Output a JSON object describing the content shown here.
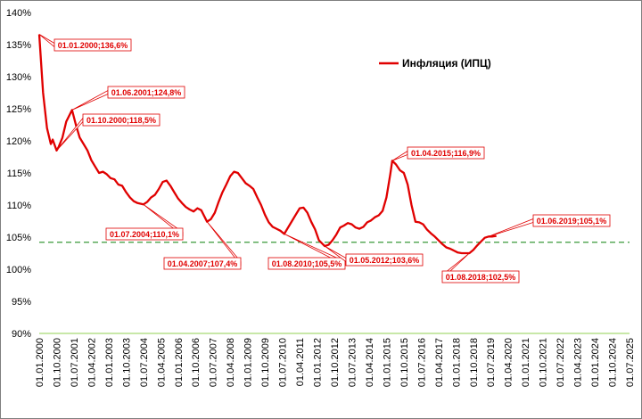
{
  "chart_data": {
    "type": "line",
    "title": "",
    "xlabel": "",
    "ylabel": "",
    "ylim": [
      90,
      140
    ],
    "yticks": [
      "90%",
      "95%",
      "100%",
      "105%",
      "110%",
      "115%",
      "120%",
      "125%",
      "130%",
      "135%",
      "140%"
    ],
    "xticks": [
      "01.01.2000",
      "01.10.2000",
      "01.07.2001",
      "01.04.2002",
      "01.01.2003",
      "01.10.2003",
      "01.07.2004",
      "01.04.2005",
      "01.01.2006",
      "01.10.2006",
      "01.07.2007",
      "01.04.2008",
      "01.01.2009",
      "01.10.2009",
      "01.07.2010",
      "01.04.2011",
      "01.01.2012",
      "01.10.2012",
      "01.07.2013",
      "01.04.2014",
      "01.01.2015",
      "01.10.2015",
      "01.07.2016",
      "01.04.2017",
      "01.01.2018",
      "01.10.2018",
      "01.07.2019",
      "01.04.2020",
      "01.01.2021",
      "01.10.2021",
      "01.07.2022",
      "01.04.2023",
      "01.01.2024",
      "01.10.2024",
      "01.07.2025"
    ],
    "grid": false,
    "legend_position": "top-right",
    "colors": {
      "series": "#e00000",
      "target": "#3a9a3a",
      "baseline": "#92d050"
    },
    "series": [
      {
        "name": "Инфляция (ИПЦ)",
        "x": [
          "2000-01",
          "2000-03",
          "2000-05",
          "2000-07",
          "2000-08",
          "2000-10",
          "2000-11",
          "2001-01",
          "2001-03",
          "2001-06",
          "2001-08",
          "2001-10",
          "2001-12",
          "2002-02",
          "2002-04",
          "2002-06",
          "2002-08",
          "2002-10",
          "2002-12",
          "2003-02",
          "2003-04",
          "2003-06",
          "2003-08",
          "2003-10",
          "2003-12",
          "2004-02",
          "2004-04",
          "2004-07",
          "2004-09",
          "2004-11",
          "2005-01",
          "2005-03",
          "2005-05",
          "2005-07",
          "2005-09",
          "2005-11",
          "2006-01",
          "2006-03",
          "2006-05",
          "2006-07",
          "2006-09",
          "2006-11",
          "2007-01",
          "2007-04",
          "2007-06",
          "2007-08",
          "2007-10",
          "2007-12",
          "2008-02",
          "2008-04",
          "2008-06",
          "2008-08",
          "2008-10",
          "2008-12",
          "2009-02",
          "2009-04",
          "2009-06",
          "2009-08",
          "2009-10",
          "2009-12",
          "2010-02",
          "2010-04",
          "2010-06",
          "2010-08",
          "2010-10",
          "2010-12",
          "2011-02",
          "2011-04",
          "2011-06",
          "2011-08",
          "2011-10",
          "2011-12",
          "2012-02",
          "2012-05",
          "2012-07",
          "2012-09",
          "2012-11",
          "2013-01",
          "2013-03",
          "2013-05",
          "2013-07",
          "2013-09",
          "2013-11",
          "2014-01",
          "2014-03",
          "2014-05",
          "2014-07",
          "2014-09",
          "2014-11",
          "2015-01",
          "2015-03",
          "2015-04",
          "2015-06",
          "2015-08",
          "2015-10",
          "2015-12",
          "2016-02",
          "2016-04",
          "2016-06",
          "2016-08",
          "2016-10",
          "2016-12",
          "2017-02",
          "2017-04",
          "2017-06",
          "2017-08",
          "2017-10",
          "2017-12",
          "2018-02",
          "2018-04",
          "2018-06",
          "2018-08",
          "2018-10",
          "2018-12",
          "2019-02",
          "2019-04",
          "2019-06",
          "2019-08",
          "2019-10"
        ],
        "values": [
          136.6,
          127.5,
          122.0,
          119.5,
          120.2,
          118.5,
          119.0,
          120.5,
          123.0,
          124.8,
          122.5,
          120.5,
          119.5,
          118.5,
          117.0,
          116.0,
          115.0,
          115.2,
          114.8,
          114.2,
          114.0,
          113.2,
          113.0,
          112.0,
          111.2,
          110.6,
          110.3,
          110.1,
          110.5,
          111.2,
          111.6,
          112.5,
          113.6,
          113.8,
          113.0,
          112.0,
          111.0,
          110.3,
          109.7,
          109.3,
          109.0,
          109.5,
          109.2,
          107.4,
          107.8,
          108.8,
          110.5,
          112.0,
          113.2,
          114.5,
          115.2,
          115.0,
          114.2,
          113.4,
          113.0,
          112.5,
          111.2,
          110.0,
          108.5,
          107.3,
          106.6,
          106.3,
          106.0,
          105.5,
          106.5,
          107.5,
          108.5,
          109.5,
          109.6,
          108.8,
          107.4,
          106.2,
          104.5,
          103.6,
          103.8,
          104.5,
          105.4,
          106.5,
          106.8,
          107.2,
          107.0,
          106.5,
          106.3,
          106.6,
          107.3,
          107.6,
          108.1,
          108.4,
          109.1,
          111.2,
          114.8,
          116.9,
          116.3,
          115.4,
          115.0,
          113.2,
          110.0,
          107.4,
          107.3,
          107.0,
          106.2,
          105.6,
          105.1,
          104.5,
          103.9,
          103.4,
          103.2,
          102.9,
          102.6,
          102.5,
          102.5,
          102.5,
          103.0,
          103.7,
          104.3,
          104.9,
          105.1,
          105.1,
          105.2
        ]
      }
    ],
    "target_line_value": 104.2,
    "annotations": [
      {
        "label": "01.01.2000;136,6%",
        "date": "2000-01",
        "value": 136.6
      },
      {
        "label": "01.06.2001;124,8%",
        "date": "2001-06",
        "value": 124.8
      },
      {
        "label": "01.10.2000;118,5%",
        "date": "2000-10",
        "value": 118.5
      },
      {
        "label": "01.07.2004;110,1%",
        "date": "2004-07",
        "value": 110.1
      },
      {
        "label": "01.04.2007;107,4%",
        "date": "2007-04",
        "value": 107.4
      },
      {
        "label": "01.08.2010;105,5%",
        "date": "2010-08",
        "value": 105.5
      },
      {
        "label": "01.05.2012;103,6%",
        "date": "2012-05",
        "value": 103.6
      },
      {
        "label": "01.04.2015;116,9%",
        "date": "2015-04",
        "value": 116.9
      },
      {
        "label": "01.08.2018;102,5%",
        "date": "2018-08",
        "value": 102.5
      },
      {
        "label": "01.06.2019;105,1%",
        "date": "2019-06",
        "value": 105.1
      }
    ]
  }
}
